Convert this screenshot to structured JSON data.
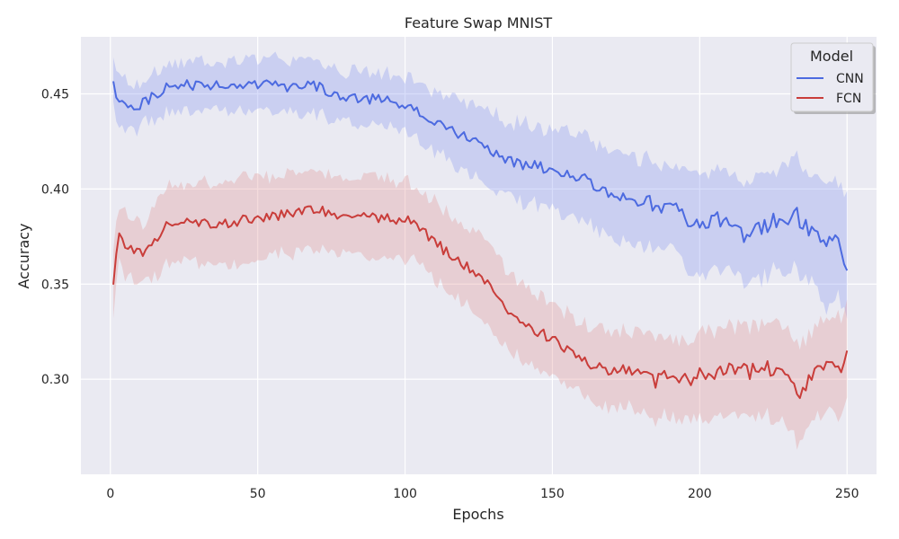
{
  "chart_data": {
    "type": "line",
    "title": "Feature Swap MNIST",
    "xlabel": "Epochs",
    "ylabel": "Accuracy",
    "xlim": [
      -10,
      260
    ],
    "ylim": [
      0.25,
      0.48
    ],
    "x_ticks": [
      0,
      50,
      100,
      150,
      200,
      250
    ],
    "y_ticks": [
      0.3,
      0.35,
      0.4,
      0.45
    ],
    "y_tick_labels": [
      "0.30",
      "0.35",
      "0.40",
      "0.45"
    ],
    "grid": true,
    "legend": {
      "title": "Model",
      "placement": "top-right"
    },
    "x_start": 1,
    "x_end": 250,
    "colors": {
      "background": "#eaeaf2",
      "grid": "#ffffff"
    },
    "series": [
      {
        "name": "CNN",
        "color": "#4c6ae0",
        "band_color": "#8f9ff0",
        "x_anchors": [
          1,
          2,
          3,
          5,
          8,
          12,
          20,
          30,
          40,
          50,
          60,
          70,
          75,
          80,
          90,
          100,
          105,
          110,
          120,
          125,
          130,
          135,
          140,
          145,
          150,
          160,
          170,
          175,
          180,
          185,
          190,
          200,
          205,
          210,
          215,
          220,
          225,
          230,
          232,
          235,
          240,
          243,
          246,
          250
        ],
        "mean": [
          0.459,
          0.45,
          0.445,
          0.446,
          0.443,
          0.446,
          0.454,
          0.455,
          0.454,
          0.455,
          0.454,
          0.454,
          0.451,
          0.449,
          0.447,
          0.445,
          0.44,
          0.435,
          0.428,
          0.423,
          0.42,
          0.415,
          0.412,
          0.412,
          0.41,
          0.406,
          0.397,
          0.396,
          0.393,
          0.392,
          0.391,
          0.38,
          0.384,
          0.385,
          0.375,
          0.38,
          0.383,
          0.385,
          0.392,
          0.38,
          0.378,
          0.373,
          0.376,
          0.359
        ],
        "upper": [
          0.472,
          0.463,
          0.46,
          0.459,
          0.456,
          0.458,
          0.466,
          0.468,
          0.467,
          0.468,
          0.467,
          0.467,
          0.464,
          0.462,
          0.46,
          0.459,
          0.455,
          0.451,
          0.446,
          0.442,
          0.44,
          0.436,
          0.434,
          0.433,
          0.432,
          0.429,
          0.42,
          0.42,
          0.416,
          0.415,
          0.413,
          0.408,
          0.41,
          0.411,
          0.404,
          0.408,
          0.411,
          0.413,
          0.42,
          0.41,
          0.407,
          0.403,
          0.404,
          0.398
        ],
        "lower": [
          0.446,
          0.437,
          0.432,
          0.432,
          0.43,
          0.434,
          0.44,
          0.441,
          0.441,
          0.442,
          0.441,
          0.44,
          0.437,
          0.436,
          0.434,
          0.432,
          0.426,
          0.42,
          0.41,
          0.405,
          0.4,
          0.395,
          0.392,
          0.391,
          0.39,
          0.384,
          0.374,
          0.372,
          0.37,
          0.368,
          0.368,
          0.353,
          0.357,
          0.36,
          0.348,
          0.353,
          0.356,
          0.358,
          0.364,
          0.352,
          0.35,
          0.337,
          0.345,
          0.335
        ]
      },
      {
        "name": "FCN",
        "color": "#c93d3a",
        "band_color": "#e39a9c",
        "x_anchors": [
          1,
          2,
          3,
          5,
          8,
          12,
          15,
          20,
          30,
          40,
          50,
          60,
          70,
          80,
          90,
          100,
          105,
          110,
          115,
          120,
          125,
          130,
          135,
          140,
          145,
          150,
          160,
          165,
          170,
          180,
          185,
          190,
          195,
          200,
          210,
          220,
          225,
          230,
          233,
          235,
          240,
          245,
          248,
          250
        ],
        "mean": [
          0.35,
          0.368,
          0.375,
          0.37,
          0.367,
          0.367,
          0.372,
          0.383,
          0.382,
          0.382,
          0.385,
          0.387,
          0.389,
          0.386,
          0.385,
          0.384,
          0.38,
          0.372,
          0.366,
          0.36,
          0.356,
          0.346,
          0.336,
          0.331,
          0.325,
          0.321,
          0.311,
          0.306,
          0.305,
          0.305,
          0.3,
          0.3,
          0.3,
          0.303,
          0.305,
          0.304,
          0.306,
          0.298,
          0.292,
          0.296,
          0.303,
          0.308,
          0.307,
          0.318
        ],
        "upper": [
          0.365,
          0.383,
          0.391,
          0.388,
          0.384,
          0.383,
          0.392,
          0.403,
          0.403,
          0.403,
          0.406,
          0.408,
          0.41,
          0.407,
          0.405,
          0.404,
          0.399,
          0.393,
          0.386,
          0.38,
          0.376,
          0.366,
          0.356,
          0.35,
          0.344,
          0.34,
          0.33,
          0.326,
          0.325,
          0.325,
          0.32,
          0.32,
          0.32,
          0.325,
          0.328,
          0.328,
          0.33,
          0.323,
          0.318,
          0.32,
          0.328,
          0.334,
          0.333,
          0.347
        ],
        "lower": [
          0.335,
          0.353,
          0.36,
          0.355,
          0.35,
          0.35,
          0.353,
          0.362,
          0.361,
          0.361,
          0.364,
          0.366,
          0.368,
          0.365,
          0.365,
          0.364,
          0.361,
          0.352,
          0.346,
          0.34,
          0.336,
          0.326,
          0.316,
          0.311,
          0.306,
          0.302,
          0.292,
          0.287,
          0.286,
          0.285,
          0.28,
          0.28,
          0.278,
          0.28,
          0.281,
          0.28,
          0.281,
          0.273,
          0.266,
          0.272,
          0.278,
          0.282,
          0.281,
          0.289
        ]
      }
    ]
  }
}
